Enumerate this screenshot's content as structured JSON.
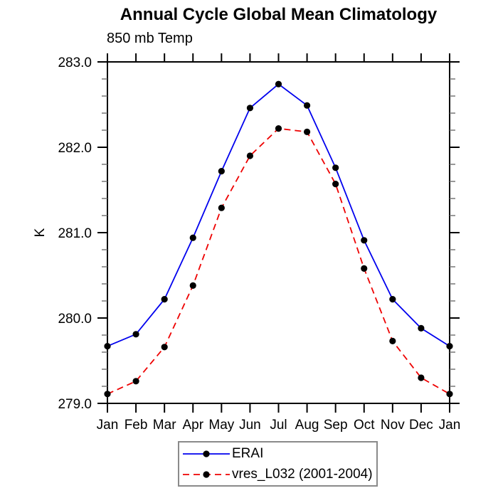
{
  "chart_data": {
    "type": "line",
    "title": "Annual Cycle Global Mean Climatology",
    "subtitle": "850 mb Temp",
    "ylabel": "K",
    "xlabel": "",
    "x_categories": [
      "Jan",
      "Feb",
      "Mar",
      "Apr",
      "May",
      "Jun",
      "Jul",
      "Aug",
      "Sep",
      "Oct",
      "Nov",
      "Dec",
      "Jan"
    ],
    "ylim": [
      279.0,
      283.0
    ],
    "y_tick_values": [
      279.0,
      280.0,
      281.0,
      282.0,
      283.0
    ],
    "y_tick_labels": [
      "279.0",
      "280.0",
      "281.0",
      "282.0",
      "283.0"
    ],
    "y_minor_step": 0.2,
    "grid": false,
    "legend_position": "bottom-center",
    "frame": true,
    "colors": {
      "axis": "#000000",
      "minor_tick": "#777777",
      "marker": "#000000",
      "legend_border": "#8a8a8a"
    },
    "series": [
      {
        "name": "ERAI",
        "color": "#0000ee",
        "line_style": "solid",
        "marker": "filled-circle",
        "values": [
          279.67,
          279.81,
          280.22,
          280.94,
          281.72,
          282.46,
          282.74,
          282.49,
          281.76,
          280.91,
          280.22,
          279.88,
          279.67
        ]
      },
      {
        "name": "vres_L032 (2001-2004)",
        "color": "#ee0000",
        "line_style": "dashed",
        "marker": "filled-circle",
        "values": [
          279.11,
          279.26,
          279.66,
          280.38,
          281.29,
          281.9,
          282.22,
          282.18,
          281.57,
          280.58,
          279.73,
          279.3,
          279.11
        ]
      }
    ]
  }
}
